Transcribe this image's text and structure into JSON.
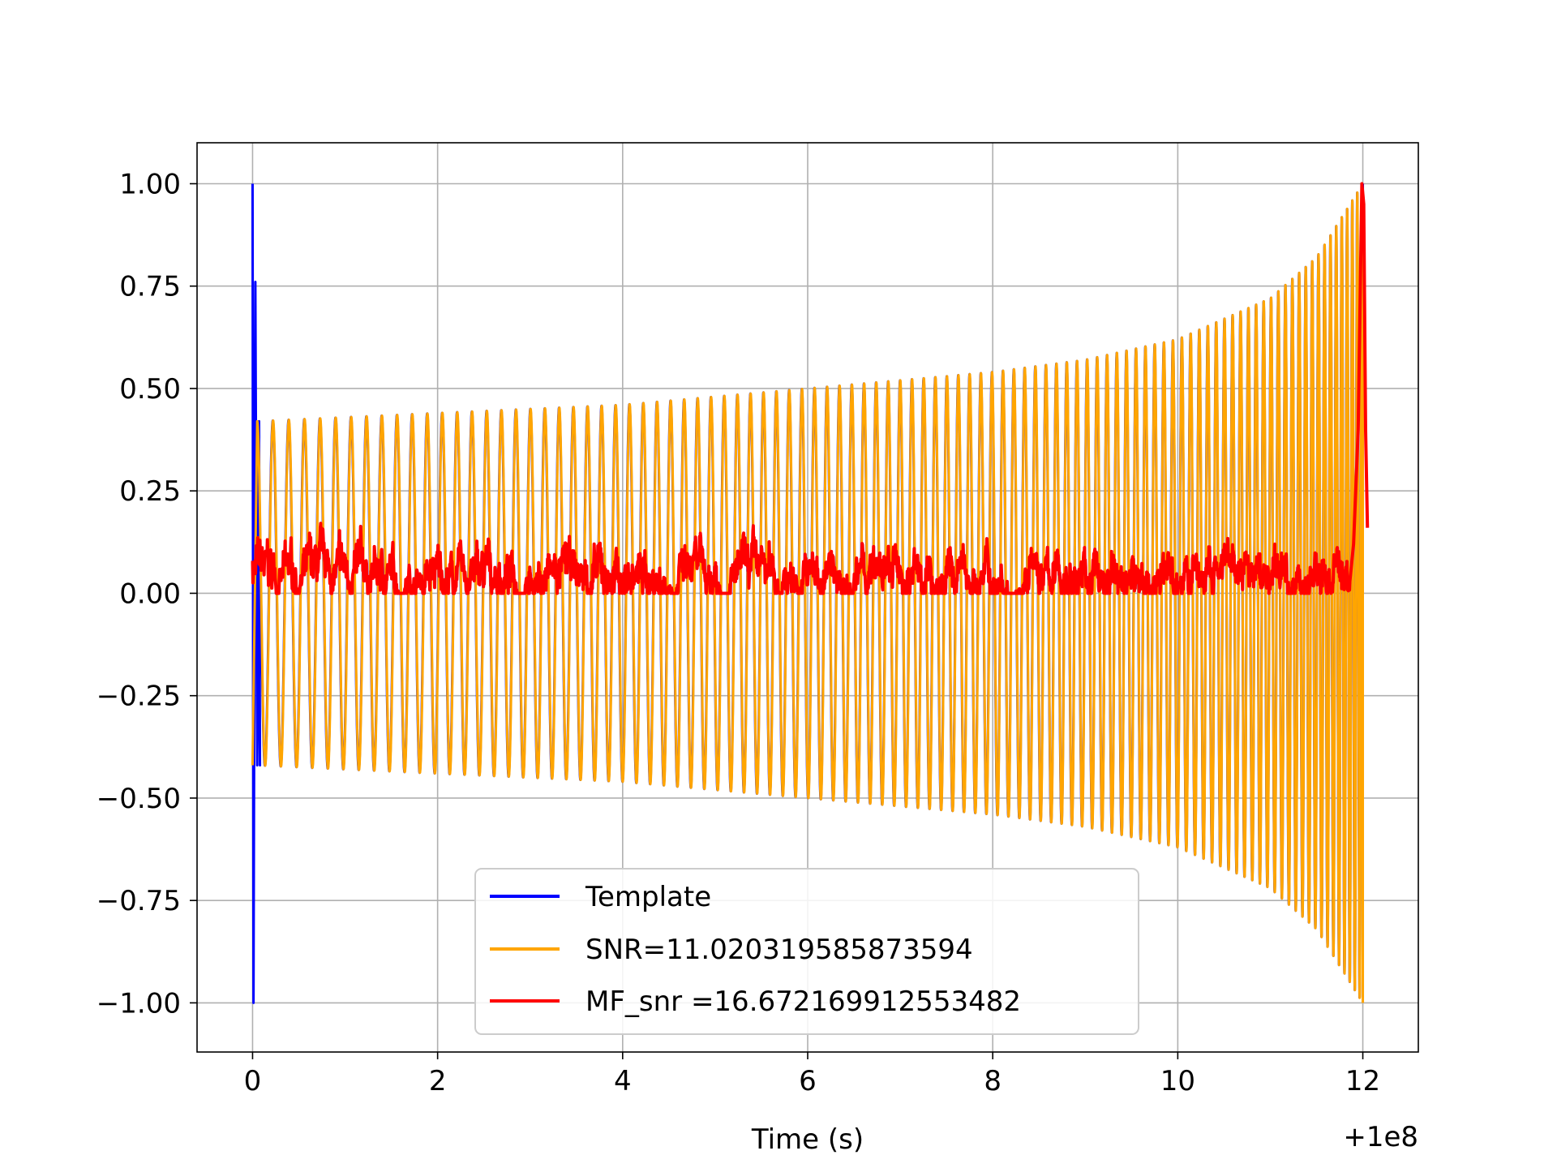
{
  "chart_data": {
    "type": "line",
    "title": "",
    "xlabel": "Time (s)",
    "ylabel": "",
    "x_offset_label": "+1e8",
    "xlim": [
      -0.6,
      12.6
    ],
    "ylim": [
      -1.12,
      1.1
    ],
    "x_ticks": [
      0,
      2,
      4,
      6,
      8,
      10,
      12
    ],
    "x_tick_labels": [
      "0",
      "2",
      "4",
      "6",
      "8",
      "10",
      "12"
    ],
    "y_ticks": [
      1.0,
      0.75,
      0.5,
      0.25,
      0.0,
      -0.25,
      -0.5,
      -0.75,
      -1.0
    ],
    "y_tick_labels": [
      "1.00",
      "0.75",
      "0.50",
      "0.25",
      "0.00",
      "−0.25",
      "−0.50",
      "−0.75",
      "−1.00"
    ],
    "grid": true,
    "legend_position": "lower-center",
    "series": [
      {
        "name": "Template",
        "color": "#0000ff",
        "description_points": {
          "x": [
            0.0,
            0.01,
            0.03,
            0.05,
            0.07,
            0.08,
            12.0
          ],
          "y": [
            1.0,
            -1.0,
            0.76,
            -0.42,
            0.42,
            -0.42,
            1.0
          ]
        },
        "envelope": {
          "x": [
            0.05,
            2,
            4,
            6,
            8,
            9,
            10,
            11,
            11.5,
            12.0
          ],
          "y": [
            0.42,
            0.44,
            0.46,
            0.5,
            0.54,
            0.57,
            0.62,
            0.72,
            0.82,
            1.0
          ]
        }
      },
      {
        "name": "SNR=11.020319585873594",
        "color": "#ffa500",
        "envelope": {
          "x": [
            0.05,
            2,
            4,
            6,
            8,
            9,
            10,
            11,
            11.5,
            12.0
          ],
          "y": [
            0.42,
            0.44,
            0.46,
            0.5,
            0.54,
            0.57,
            0.62,
            0.72,
            0.82,
            1.0
          ]
        }
      },
      {
        "name": "MF_snr =16.672169912553482",
        "color": "#ff0000",
        "x_range": [
          0.0,
          12.0
        ],
        "baseline_range": [
          0.0,
          0.22
        ],
        "end_peak": {
          "x": 11.99,
          "y": 1.0
        }
      }
    ]
  }
}
